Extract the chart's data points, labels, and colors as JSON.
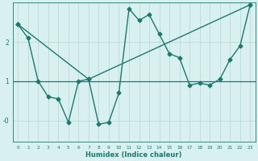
{
  "title": "",
  "xlabel": "Humidex (Indice chaleur)",
  "background_color": "#d8f0f0",
  "line_color": "#1a7a6e",
  "grid_color": "#c0d8d8",
  "x_ticks": [
    0,
    1,
    2,
    3,
    4,
    5,
    6,
    7,
    8,
    9,
    10,
    11,
    12,
    13,
    14,
    15,
    16,
    17,
    18,
    19,
    20,
    21,
    22,
    23
  ],
  "ylim": [
    -0.55,
    3.0
  ],
  "xlim": [
    -0.5,
    23.5
  ],
  "series1_x": [
    0,
    1,
    2,
    3,
    4,
    5,
    6,
    7,
    8,
    9,
    10,
    11,
    12,
    13,
    14,
    15,
    16,
    17,
    18,
    19,
    20,
    21,
    22,
    23
  ],
  "series1_y": [
    2.45,
    2.1,
    1.0,
    0.6,
    0.55,
    -0.05,
    1.0,
    1.05,
    -0.1,
    -0.05,
    0.7,
    2.85,
    2.55,
    2.7,
    2.2,
    1.7,
    1.6,
    0.9,
    0.95,
    0.9,
    1.05,
    1.55,
    1.9,
    2.95
  ],
  "series2_x": [
    0,
    7,
    23
  ],
  "series2_y": [
    2.45,
    1.05,
    2.95
  ],
  "marker": "D",
  "markersize": 2.5,
  "linewidth": 1.0
}
